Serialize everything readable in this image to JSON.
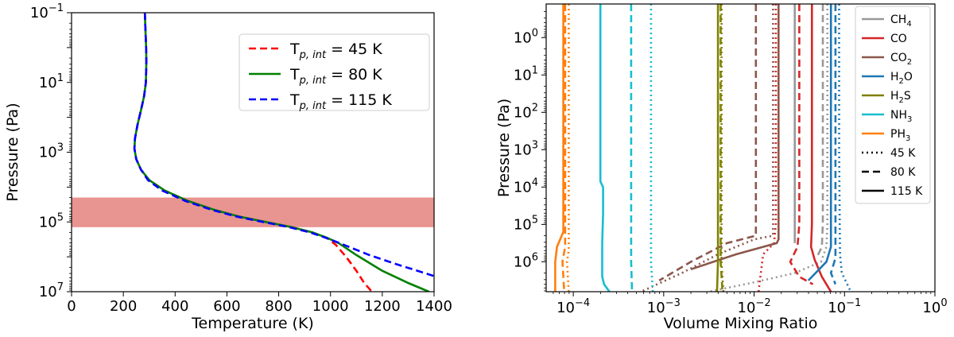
{
  "chart_data": [
    {
      "type": "line",
      "xlabel": "Temperature (K)",
      "ylabel": "Pressure (Pa)",
      "xlim": [
        0,
        1400
      ],
      "ylim_log10": [
        -1,
        7
      ],
      "yscale": "log",
      "y_inverted": true,
      "x_ticks": [
        "0",
        "200",
        "400",
        "600",
        "800",
        "1000",
        "1200",
        "1400"
      ],
      "y_ticks": [
        {
          "exp": -1,
          "label": "10",
          "sup": "−1"
        },
        {
          "exp": 1,
          "label": "10",
          "sup": "1"
        },
        {
          "exp": 3,
          "label": "10",
          "sup": "3"
        },
        {
          "exp": 5,
          "label": "10",
          "sup": "5"
        },
        {
          "exp": 7,
          "label": "10",
          "sup": "7"
        }
      ],
      "shaded_band": {
        "log10_pressure": [
          4.3,
          5.15
        ],
        "color": "#e89490"
      },
      "legend_position": "top-right",
      "series": [
        {
          "name": "45 K",
          "legend_prefix": "T",
          "legend_sub": "p, int",
          "legend_suffix": " = 45 K",
          "color": "#ff0000",
          "style": "dashed",
          "x": [
            283,
            285,
            288,
            289,
            287,
            280,
            268,
            255,
            245,
            243,
            250,
            268,
            300,
            360,
            450,
            550,
            650,
            750,
            850,
            930,
            985,
            1020,
            1060,
            1100,
            1130,
            1160
          ],
          "log10p": [
            -1,
            -0.6,
            0,
            0.4,
            1,
            1.4,
            1.8,
            2.2,
            2.6,
            2.9,
            3.2,
            3.5,
            3.8,
            4.1,
            4.4,
            4.65,
            4.85,
            5.0,
            5.15,
            5.3,
            5.45,
            5.65,
            6.0,
            6.4,
            6.75,
            7.0
          ]
        },
        {
          "name": "80 K",
          "legend_prefix": "T",
          "legend_sub": "p, int",
          "legend_suffix": " = 80 K",
          "color": "#008000",
          "style": "solid",
          "x": [
            283,
            285,
            288,
            289,
            287,
            280,
            268,
            255,
            245,
            243,
            250,
            268,
            300,
            360,
            450,
            550,
            650,
            750,
            850,
            930,
            985,
            1030,
            1100,
            1200,
            1300,
            1380
          ],
          "log10p": [
            -1,
            -0.6,
            0,
            0.4,
            1,
            1.4,
            1.8,
            2.2,
            2.6,
            2.9,
            3.2,
            3.5,
            3.8,
            4.1,
            4.4,
            4.65,
            4.85,
            5.0,
            5.15,
            5.3,
            5.45,
            5.6,
            5.95,
            6.4,
            6.75,
            7.0
          ]
        },
        {
          "name": "115 K",
          "legend_prefix": "T",
          "legend_sub": "p, int",
          "legend_suffix": " = 115 K",
          "color": "#0000ff",
          "style": "dashed",
          "x": [
            283,
            285,
            288,
            289,
            287,
            280,
            268,
            255,
            245,
            243,
            250,
            268,
            295,
            350,
            440,
            540,
            640,
            740,
            840,
            920,
            980,
            1050,
            1150,
            1250,
            1400
          ],
          "log10p": [
            -1,
            -0.6,
            0,
            0.4,
            1,
            1.4,
            1.8,
            2.2,
            2.6,
            2.9,
            3.2,
            3.5,
            3.8,
            4.1,
            4.4,
            4.65,
            4.85,
            5.0,
            5.15,
            5.3,
            5.45,
            5.65,
            5.95,
            6.2,
            6.55
          ]
        }
      ]
    },
    {
      "type": "line",
      "xlabel": "Volume Mixing Ratio",
      "ylabel": "Pressure (Pa)",
      "xscale": "log",
      "xlim_log10": [
        -4.3,
        0
      ],
      "ylim_log10": [
        -0.9,
        6.8
      ],
      "yscale": "log",
      "y_inverted": true,
      "x_ticks": [
        {
          "exp": -4,
          "label": "10",
          "sup": "−4"
        },
        {
          "exp": -3,
          "label": "10",
          "sup": "−3"
        },
        {
          "exp": -2,
          "label": "10",
          "sup": "−2"
        },
        {
          "exp": -1,
          "label": "10",
          "sup": "−1"
        },
        {
          "exp": 0,
          "label": "10",
          "sup": "0"
        }
      ],
      "y_ticks": [
        {
          "exp": 0,
          "label": "10",
          "sup": "0"
        },
        {
          "exp": 1,
          "label": "10",
          "sup": "1"
        },
        {
          "exp": 2,
          "label": "10",
          "sup": "2"
        },
        {
          "exp": 3,
          "label": "10",
          "sup": "3"
        },
        {
          "exp": 4,
          "label": "10",
          "sup": "4"
        },
        {
          "exp": 5,
          "label": "10",
          "sup": "5"
        },
        {
          "exp": 6,
          "label": "10",
          "sup": "6"
        }
      ],
      "legend_position": "top-right",
      "species_legend": [
        {
          "name": "CH4",
          "base": "CH",
          "sub": "4",
          "color": "#999999"
        },
        {
          "name": "CO",
          "base": "CO",
          "sub": "",
          "color": "#d62728"
        },
        {
          "name": "CO2",
          "base": "CO",
          "sub": "2",
          "color": "#8c564b"
        },
        {
          "name": "H2O",
          "base": "H",
          "sub": "2",
          "tail": "O",
          "color": "#1f77b4"
        },
        {
          "name": "H2S",
          "base": "H",
          "sub": "2",
          "tail": "S",
          "color": "#808000"
        },
        {
          "name": "NH3",
          "base": "NH",
          "sub": "3",
          "color": "#17becf"
        },
        {
          "name": "PH3",
          "base": "PH",
          "sub": "3",
          "color": "#ff7f0e"
        }
      ],
      "style_legend": [
        {
          "label": "45 K",
          "style": "dotted"
        },
        {
          "label": "80 K",
          "style": "dashed"
        },
        {
          "label": "115 K",
          "style": "solid"
        }
      ],
      "series": [
        {
          "species": "CH4",
          "case": "45 K",
          "style": "dotted",
          "color": "#999999",
          "log10vmr": [
            -1.19,
            -1.19,
            -1.19,
            -1.2,
            -1.26,
            -1.55,
            -2.0,
            -2.5
          ],
          "log10p": [
            -0.9,
            3.0,
            5.0,
            5.6,
            6.0,
            6.3,
            6.55,
            6.8
          ]
        },
        {
          "species": "CH4",
          "case": "80 K",
          "style": "dashed",
          "color": "#999999",
          "log10vmr": [
            -1.24,
            -1.24,
            -1.24,
            -1.25,
            -1.3
          ],
          "log10p": [
            -0.9,
            3.0,
            5.0,
            5.6,
            5.85
          ]
        },
        {
          "species": "CH4",
          "case": "115 K",
          "style": "solid",
          "color": "#999999",
          "log10vmr": [
            -1.55,
            -1.55,
            -1.55
          ],
          "log10p": [
            -0.9,
            5.0,
            5.5
          ]
        },
        {
          "species": "CO",
          "case": "45 K",
          "style": "dotted",
          "color": "#d62728",
          "log10vmr": [
            -1.76,
            -1.76,
            -1.76,
            -1.78,
            -1.9,
            -1.95
          ],
          "log10p": [
            -0.9,
            3.0,
            5.0,
            5.5,
            5.8,
            6.8
          ]
        },
        {
          "species": "CO",
          "case": "80 K",
          "style": "dashed",
          "color": "#d62728",
          "log10vmr": [
            -1.5,
            -1.5,
            -1.5,
            -1.52,
            -1.6,
            -1.5,
            -1.35
          ],
          "log10p": [
            -0.9,
            3.0,
            5.0,
            5.6,
            6.0,
            6.4,
            6.6
          ]
        },
        {
          "species": "CO",
          "case": "115 K",
          "style": "solid",
          "color": "#d62728",
          "log10vmr": [
            -1.36,
            -1.36,
            -1.36,
            -1.37,
            -1.33,
            -1.25,
            -1.15
          ],
          "log10p": [
            -0.9,
            3.0,
            5.0,
            5.6,
            5.95,
            6.4,
            6.8
          ]
        },
        {
          "species": "CO2",
          "case": "45 K",
          "style": "dotted",
          "color": "#8c564b",
          "log10vmr": [
            -1.79,
            -1.79,
            -1.79,
            -2.0,
            -2.4,
            -2.8,
            -3.25
          ],
          "log10p": [
            -0.9,
            3.0,
            5.3,
            5.4,
            5.8,
            6.3,
            6.8
          ]
        },
        {
          "species": "CO2",
          "case": "80 K",
          "style": "dashed",
          "color": "#8c564b",
          "log10vmr": [
            -1.98,
            -1.98,
            -1.98,
            -2.3,
            -2.7,
            -3.05
          ],
          "log10p": [
            -0.9,
            3.0,
            5.3,
            5.5,
            6.0,
            6.5
          ]
        },
        {
          "species": "CO2",
          "case": "115 K",
          "style": "solid",
          "color": "#8c564b",
          "log10vmr": [
            -1.73,
            -1.73,
            -1.73,
            -1.75,
            -2.2,
            -2.7
          ],
          "log10p": [
            -0.9,
            3.0,
            5.4,
            5.5,
            5.8,
            6.2
          ]
        },
        {
          "species": "H2O",
          "case": "45 K",
          "style": "dotted",
          "color": "#1f77b4",
          "log10vmr": [
            -1.06,
            -1.06,
            -1.05,
            -1.03,
            -0.93
          ],
          "log10p": [
            -0.9,
            3.0,
            5.8,
            6.3,
            6.8
          ]
        },
        {
          "species": "H2O",
          "case": "80 K",
          "style": "dashed",
          "color": "#1f77b4",
          "log10vmr": [
            -1.1,
            -1.1,
            -1.1,
            -1.15,
            -1.1
          ],
          "log10p": [
            -0.9,
            3.0,
            5.9,
            6.3,
            6.6
          ]
        },
        {
          "species": "H2O",
          "case": "115 K",
          "style": "solid",
          "color": "#1f77b4",
          "log10vmr": [
            -1.15,
            -1.15,
            -1.15,
            -1.2,
            -1.4
          ],
          "log10p": [
            -0.9,
            3.0,
            5.6,
            6.0,
            6.5
          ]
        },
        {
          "species": "H2S",
          "case": "45 K",
          "style": "dotted",
          "color": "#808000",
          "log10vmr": [
            -2.36,
            -2.36,
            -2.36,
            -2.34
          ],
          "log10p": [
            -0.9,
            5.0,
            6.0,
            6.8
          ]
        },
        {
          "species": "H2S",
          "case": "80 K",
          "style": "dashed",
          "color": "#808000",
          "log10vmr": [
            -2.37,
            -2.37,
            -2.37,
            -2.35
          ],
          "log10p": [
            -0.9,
            5.0,
            6.0,
            6.8
          ]
        },
        {
          "species": "H2S",
          "case": "115 K",
          "style": "solid",
          "color": "#808000",
          "log10vmr": [
            -2.4,
            -2.4,
            -2.4,
            -2.41
          ],
          "log10p": [
            -0.9,
            5.0,
            6.0,
            6.8
          ]
        },
        {
          "species": "NH3",
          "case": "45 K",
          "style": "dotted",
          "color": "#17becf",
          "log10vmr": [
            -3.14,
            -3.14,
            -3.14,
            -3.12
          ],
          "log10p": [
            -0.9,
            5.0,
            6.0,
            6.8
          ]
        },
        {
          "species": "NH3",
          "case": "80 K",
          "style": "dashed",
          "color": "#17becf",
          "log10vmr": [
            -3.36,
            -3.36,
            -3.36,
            -3.35
          ],
          "log10p": [
            -0.9,
            5.0,
            6.0,
            6.8
          ]
        },
        {
          "species": "NH3",
          "case": "115 K",
          "style": "solid",
          "color": "#17becf",
          "log10vmr": [
            -3.7,
            -3.7,
            -3.7,
            -3.67,
            -3.67,
            -3.68,
            -3.68,
            -3.66,
            -3.6
          ],
          "log10p": [
            -0.9,
            3.8,
            3.85,
            4.0,
            4.7,
            5.5,
            6.4,
            6.6,
            6.8
          ]
        },
        {
          "species": "PH3",
          "case": "45 K",
          "style": "dotted",
          "color": "#ff7f0e",
          "log10vmr": [
            -4.05,
            -4.05,
            -4.05,
            -4.07,
            -4.05
          ],
          "log10p": [
            -0.9,
            5.0,
            5.7,
            6.0,
            6.8
          ]
        },
        {
          "species": "PH3",
          "case": "80 K",
          "style": "dashed",
          "color": "#ff7f0e",
          "log10vmr": [
            -4.09,
            -4.09,
            -4.09,
            -4.12,
            -4.1
          ],
          "log10p": [
            -0.9,
            5.0,
            5.6,
            6.0,
            6.8
          ]
        },
        {
          "species": "PH3",
          "case": "115 K",
          "style": "solid",
          "color": "#ff7f0e",
          "log10vmr": [
            -4.11,
            -4.11,
            -4.11,
            -4.18,
            -4.2,
            -4.2
          ],
          "log10p": [
            -0.9,
            5.0,
            5.2,
            5.6,
            6.0,
            6.8
          ]
        }
      ]
    }
  ]
}
